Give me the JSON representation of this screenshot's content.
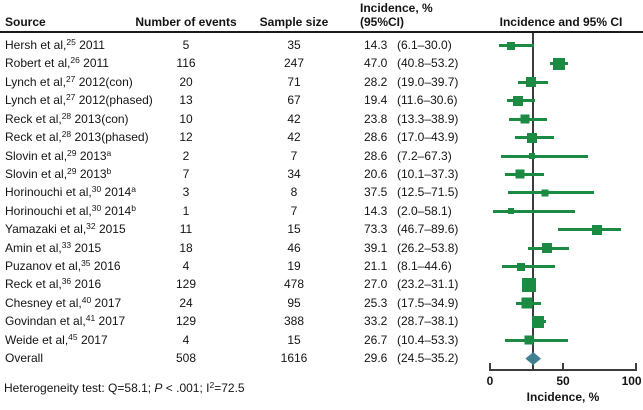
{
  "table": {
    "headers": {
      "source": "Source",
      "events": "Number of events",
      "sample": "Sample size",
      "incidence_line1": "Incidence, %",
      "incidence_line2": "(95%CI)",
      "plot": "Incidence and 95% CI"
    }
  },
  "chart_data": {
    "type": "forest",
    "xlabel": "Incidence, %",
    "xlim": [
      0,
      100
    ],
    "xticks": [
      {
        "value": 0,
        "label": "0"
      },
      {
        "value": 50,
        "label": "50"
      },
      {
        "value": 100,
        "label": "100"
      }
    ],
    "reference_line": 29.6,
    "colors": {
      "study_marker": "#1b8a42",
      "overall_marker": "#41808f",
      "axis": "#3c3c3c",
      "refline": "#3c3c3c"
    },
    "rows": [
      {
        "src": "Hersh et al,",
        "sup": "25",
        "after": " 2011",
        "tail": "",
        "events": "5",
        "n": "35",
        "val": "14.3",
        "ci": "(6.1–30.0)",
        "mean": 14.3,
        "lo": 6.1,
        "hi": 30.0,
        "size": 8
      },
      {
        "src": "Robert et al,",
        "sup": "26",
        "after": " 2011",
        "tail": "",
        "events": "116",
        "n": "247",
        "val": "47.0",
        "ci": "(40.8–53.2)",
        "mean": 47.0,
        "lo": 40.8,
        "hi": 53.2,
        "size": 12
      },
      {
        "src": "Lynch et al,",
        "sup": "27",
        "after": " 2012(con)",
        "tail": "",
        "events": "20",
        "n": "71",
        "val": "28.2",
        "ci": "(19.0–39.7)",
        "mean": 28.2,
        "lo": 19.0,
        "hi": 39.7,
        "size": 10
      },
      {
        "src": "Lynch et al,",
        "sup": "27",
        "after": " 2012(phased)",
        "tail": "",
        "events": "13",
        "n": "67",
        "val": "19.4",
        "ci": "(11.6–30.6)",
        "mean": 19.4,
        "lo": 11.6,
        "hi": 30.6,
        "size": 10
      },
      {
        "src": "Reck et al,",
        "sup": "28",
        "after": " 2013(con)",
        "tail": "",
        "events": "10",
        "n": "42",
        "val": "23.8",
        "ci": "(13.3–38.9)",
        "mean": 23.8,
        "lo": 13.3,
        "hi": 38.9,
        "size": 9
      },
      {
        "src": "Reck et al,",
        "sup": "28",
        "after": " 2013(phased)",
        "tail": "",
        "events": "12",
        "n": "42",
        "val": "28.6",
        "ci": "(17.0–43.9)",
        "mean": 28.6,
        "lo": 17.0,
        "hi": 43.9,
        "size": 10
      },
      {
        "src": "Slovin et al,",
        "sup": "29",
        "after": " 2013",
        "tail": "a",
        "events": "2",
        "n": "7",
        "val": "28.6",
        "ci": "(7.2–67.3)",
        "mean": 28.6,
        "lo": 7.2,
        "hi": 67.3,
        "size": 6
      },
      {
        "src": "Slovin et al,",
        "sup": "29",
        "after": " 2013",
        "tail": "b",
        "events": "7",
        "n": "34",
        "val": "20.6",
        "ci": "(10.1–37.3)",
        "mean": 20.6,
        "lo": 10.1,
        "hi": 37.3,
        "size": 9
      },
      {
        "src": "Horinouchi et al,",
        "sup": "30",
        "after": " 2014",
        "tail": "a",
        "events": "3",
        "n": "8",
        "val": "37.5",
        "ci": "(12.5–71.5)",
        "mean": 37.5,
        "lo": 12.5,
        "hi": 71.5,
        "size": 7
      },
      {
        "src": "Horinouchi et al,",
        "sup": "30",
        "after": " 2014",
        "tail": "b",
        "events": "1",
        "n": "7",
        "val": "14.3",
        "ci": "(2.0–58.1)",
        "mean": 14.3,
        "lo": 2.0,
        "hi": 58.1,
        "size": 6
      },
      {
        "src": "Yamazaki et al,",
        "sup": "32",
        "after": " 2015",
        "tail": "",
        "events": "11",
        "n": "15",
        "val": "73.3",
        "ci": "(46.7–89.6)",
        "mean": 73.3,
        "lo": 46.7,
        "hi": 89.6,
        "size": 10
      },
      {
        "src": "Amin et al,",
        "sup": "33",
        "after": " 2015",
        "tail": "",
        "events": "18",
        "n": "46",
        "val": "39.1",
        "ci": "(26.2–53.8)",
        "mean": 39.1,
        "lo": 26.2,
        "hi": 53.8,
        "size": 10
      },
      {
        "src": "Puzanov et al,",
        "sup": "35",
        "after": " 2016",
        "tail": "",
        "events": "4",
        "n": "19",
        "val": "21.1",
        "ci": "(8.1–44.6)",
        "mean": 21.1,
        "lo": 8.1,
        "hi": 44.6,
        "size": 8
      },
      {
        "src": "Reck et al,",
        "sup": "36",
        "after": " 2016",
        "tail": "",
        "events": "129",
        "n": "478",
        "val": "27.0",
        "ci": "(23.2–31.1)",
        "mean": 27.0,
        "lo": 23.2,
        "hi": 31.1,
        "size": 14
      },
      {
        "src": "Chesney et al,",
        "sup": "40",
        "after": " 2017",
        "tail": "",
        "events": "24",
        "n": "95",
        "val": "25.3",
        "ci": "(17.5–34.9)",
        "mean": 25.3,
        "lo": 17.5,
        "hi": 34.9,
        "size": 11
      },
      {
        "src": "Govindan et al,",
        "sup": "41",
        "after": " 2017",
        "tail": "",
        "events": "129",
        "n": "388",
        "val": "33.2",
        "ci": "(28.7–38.1)",
        "mean": 33.2,
        "lo": 28.7,
        "hi": 38.1,
        "size": 12
      },
      {
        "src": "Weide et al,",
        "sup": "45",
        "after": " 2017",
        "tail": "",
        "events": "4",
        "n": "15",
        "val": "26.7",
        "ci": "(10.4–53.3)",
        "mean": 26.7,
        "lo": 10.4,
        "hi": 53.3,
        "size": 9
      },
      {
        "src": "Overall",
        "sup": "",
        "after": "",
        "tail": "",
        "events": "508",
        "n": "1616",
        "val": "29.6",
        "ci": "(24.5–35.2)",
        "mean": 29.6,
        "lo": 24.5,
        "hi": 35.2,
        "size": 13,
        "overall": true
      }
    ]
  },
  "footnote": {
    "prefix": "Heterogeneity test: Q=58.1; ",
    "p_italic": "P",
    "mid": " < .001; I",
    "sup": "2",
    "suffix": "=72.5"
  }
}
